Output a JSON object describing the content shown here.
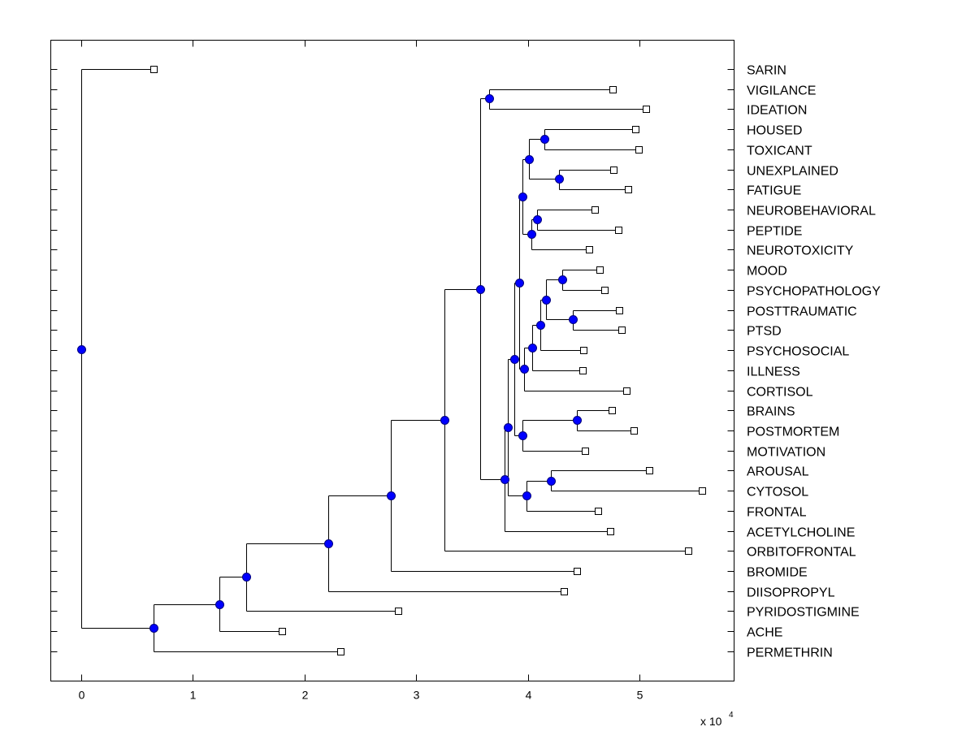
{
  "chart_data": {
    "type": "dendrogram",
    "title": "",
    "xlabel": "",
    "ylabel": "",
    "x_multiplier_label": "x 10",
    "x_multiplier_exponent": "4",
    "xlim": [
      -0.27,
      5.84
    ],
    "xticks": [
      0,
      1,
      2,
      3,
      4,
      5
    ],
    "xtick_labels": [
      "0",
      "1",
      "2",
      "3",
      "4",
      "5"
    ],
    "grid": false,
    "legend": "none",
    "colors": {
      "internal_node": "#0000ff",
      "leaf_node": "#ffffff",
      "line": "#000000"
    },
    "leaves": [
      {
        "id": "SARIN",
        "label": "SARIN",
        "x": 0.65
      },
      {
        "id": "VIGILANCE",
        "label": "VIGILANCE",
        "x": 4.76
      },
      {
        "id": "IDEATION",
        "label": "IDEATION",
        "x": 5.06
      },
      {
        "id": "HOUSED",
        "label": "HOUSED",
        "x": 4.96
      },
      {
        "id": "TOXICANT",
        "label": "TOXICANT",
        "x": 4.99
      },
      {
        "id": "UNEXPLAINED",
        "label": "UNEXPLAINED",
        "x": 4.77
      },
      {
        "id": "FATIGUE",
        "label": "FATIGUE",
        "x": 4.9
      },
      {
        "id": "NEUROBEHAVIORAL",
        "label": "NEUROBEHAVIORAL",
        "x": 4.6
      },
      {
        "id": "PEPTIDE",
        "label": "PEPTIDE",
        "x": 4.81
      },
      {
        "id": "NEUROTOXICITY",
        "label": "NEUROTOXICITY",
        "x": 4.55
      },
      {
        "id": "MOOD",
        "label": "MOOD",
        "x": 4.64
      },
      {
        "id": "PSYCHOPATHOLOGY",
        "label": "PSYCHOPATHOLOGY",
        "x": 4.69
      },
      {
        "id": "POSTTRAUMATIC",
        "label": "POSTTRAUMATIC",
        "x": 4.82
      },
      {
        "id": "PTSD",
        "label": "PTSD",
        "x": 4.84
      },
      {
        "id": "PSYCHOSOCIAL",
        "label": "PSYCHOSOCIAL",
        "x": 4.5
      },
      {
        "id": "ILLNESS",
        "label": "ILLNESS",
        "x": 4.49
      },
      {
        "id": "CORTISOL",
        "label": "CORTISOL",
        "x": 4.88
      },
      {
        "id": "BRAINS",
        "label": "BRAINS",
        "x": 4.75
      },
      {
        "id": "POSTMORTEM",
        "label": "POSTMORTEM",
        "x": 4.95
      },
      {
        "id": "MOTIVATION",
        "label": "MOTIVATION",
        "x": 4.51
      },
      {
        "id": "AROUSAL",
        "label": "AROUSAL",
        "x": 5.09
      },
      {
        "id": "CYTOSOL",
        "label": "CYTOSOL",
        "x": 5.56
      },
      {
        "id": "FRONTAL",
        "label": "FRONTAL",
        "x": 4.63
      },
      {
        "id": "ACETYLCHOLINE",
        "label": "ACETYLCHOLINE",
        "x": 4.74
      },
      {
        "id": "ORBITOFRONTAL",
        "label": "ORBITOFRONTAL",
        "x": 5.44
      },
      {
        "id": "BROMIDE",
        "label": "BROMIDE",
        "x": 4.44
      },
      {
        "id": "DIISOPROPYL",
        "label": "DIISOPROPYL",
        "x": 4.32
      },
      {
        "id": "PYRIDOSTIGMINE",
        "label": "PYRIDOSTIGMINE",
        "x": 2.84
      },
      {
        "id": "ACHE",
        "label": "ACHE",
        "x": 1.8
      },
      {
        "id": "PERMETHRIN",
        "label": "PERMETHRIN",
        "x": 2.32
      }
    ],
    "internal_nodes": [
      {
        "id": "root",
        "x": 0.0,
        "row": 13.96,
        "children": [
          "SARIN",
          "n_pe"
        ]
      },
      {
        "id": "n_pe",
        "x": 0.65,
        "row": 27.83,
        "children": [
          "n_a",
          "PERMETHRIN"
        ]
      },
      {
        "id": "n_a",
        "x": 1.24,
        "row": 26.66,
        "children": [
          "n_p",
          "ACHE"
        ]
      },
      {
        "id": "n_p",
        "x": 1.48,
        "row": 25.28,
        "children": [
          "n_d",
          "PYRIDOSTIGMINE"
        ]
      },
      {
        "id": "n_d",
        "x": 2.21,
        "row": 23.62,
        "children": [
          "n_b",
          "DIISOPROPYL"
        ]
      },
      {
        "id": "n_b",
        "x": 2.77,
        "row": 21.24,
        "children": [
          "n_o",
          "BROMIDE"
        ]
      },
      {
        "id": "n_o",
        "x": 3.25,
        "row": 17.48,
        "children": [
          "n_top",
          "ORBITOFRONTAL"
        ]
      },
      {
        "id": "n_top",
        "x": 3.57,
        "row": 10.96,
        "children": [
          "n_vi",
          "n_y"
        ]
      },
      {
        "id": "n_vi",
        "x": 3.65,
        "row": 1.46,
        "children": [
          "VIGILANCE",
          "IDEATION"
        ]
      },
      {
        "id": "n_y",
        "x": 3.79,
        "row": 20.43,
        "children": [
          "n_x",
          "ACETYLCHOLINE"
        ]
      },
      {
        "id": "n_x",
        "x": 3.82,
        "row": 17.84,
        "children": [
          "n_m",
          "n_acf"
        ]
      },
      {
        "id": "n_m",
        "x": 3.88,
        "row": 14.44,
        "children": [
          "n_g2",
          "n_bpm"
        ]
      },
      {
        "id": "n_g2",
        "x": 3.92,
        "row": 10.64,
        "children": [
          "n_g1",
          "n_psic"
        ]
      },
      {
        "id": "n_g1",
        "x": 3.95,
        "row": 6.35,
        "children": [
          "n_htuf",
          "n_npn"
        ]
      },
      {
        "id": "n_htuf",
        "x": 4.01,
        "row": 4.49,
        "children": [
          "n_ht",
          "n_uf"
        ]
      },
      {
        "id": "n_ht",
        "x": 4.15,
        "row": 3.48,
        "children": [
          "HOUSED",
          "TOXICANT"
        ]
      },
      {
        "id": "n_uf",
        "x": 4.28,
        "row": 5.46,
        "children": [
          "UNEXPLAINED",
          "FATIGUE"
        ]
      },
      {
        "id": "n_npn",
        "x": 4.03,
        "row": 8.21,
        "children": [
          "n_np",
          "NEUROTOXICITY"
        ]
      },
      {
        "id": "n_np",
        "x": 4.08,
        "row": 7.48,
        "children": [
          "NEUROBEHAVIORAL",
          "PEPTIDE"
        ]
      },
      {
        "id": "n_psic",
        "x": 3.97,
        "row": 14.93,
        "children": [
          "n_psi",
          "CORTISOL"
        ]
      },
      {
        "id": "n_psi",
        "x": 4.04,
        "row": 13.88,
        "children": [
          "n_ps",
          "ILLNESS"
        ]
      },
      {
        "id": "n_ps",
        "x": 4.11,
        "row": 12.74,
        "children": [
          "n_mppp",
          "PSYCHOSOCIAL"
        ]
      },
      {
        "id": "n_mppp",
        "x": 4.16,
        "row": 11.49,
        "children": [
          "n_mp",
          "n_pp"
        ]
      },
      {
        "id": "n_mp",
        "x": 4.31,
        "row": 10.48,
        "children": [
          "MOOD",
          "PSYCHOPATHOLOGY"
        ]
      },
      {
        "id": "n_pp",
        "x": 4.4,
        "row": 12.46,
        "children": [
          "POSTTRAUMATIC",
          "PTSD"
        ]
      },
      {
        "id": "n_bpm",
        "x": 3.95,
        "row": 18.24,
        "children": [
          "n_bp",
          "MOTIVATION"
        ]
      },
      {
        "id": "n_bp",
        "x": 4.44,
        "row": 17.48,
        "children": [
          "BRAINS",
          "POSTMORTEM"
        ]
      },
      {
        "id": "n_acf",
        "x": 3.99,
        "row": 21.24,
        "children": [
          "n_ac",
          "FRONTAL"
        ]
      },
      {
        "id": "n_ac",
        "x": 4.21,
        "row": 20.51,
        "children": [
          "AROUSAL",
          "CYTOSOL"
        ]
      }
    ]
  }
}
